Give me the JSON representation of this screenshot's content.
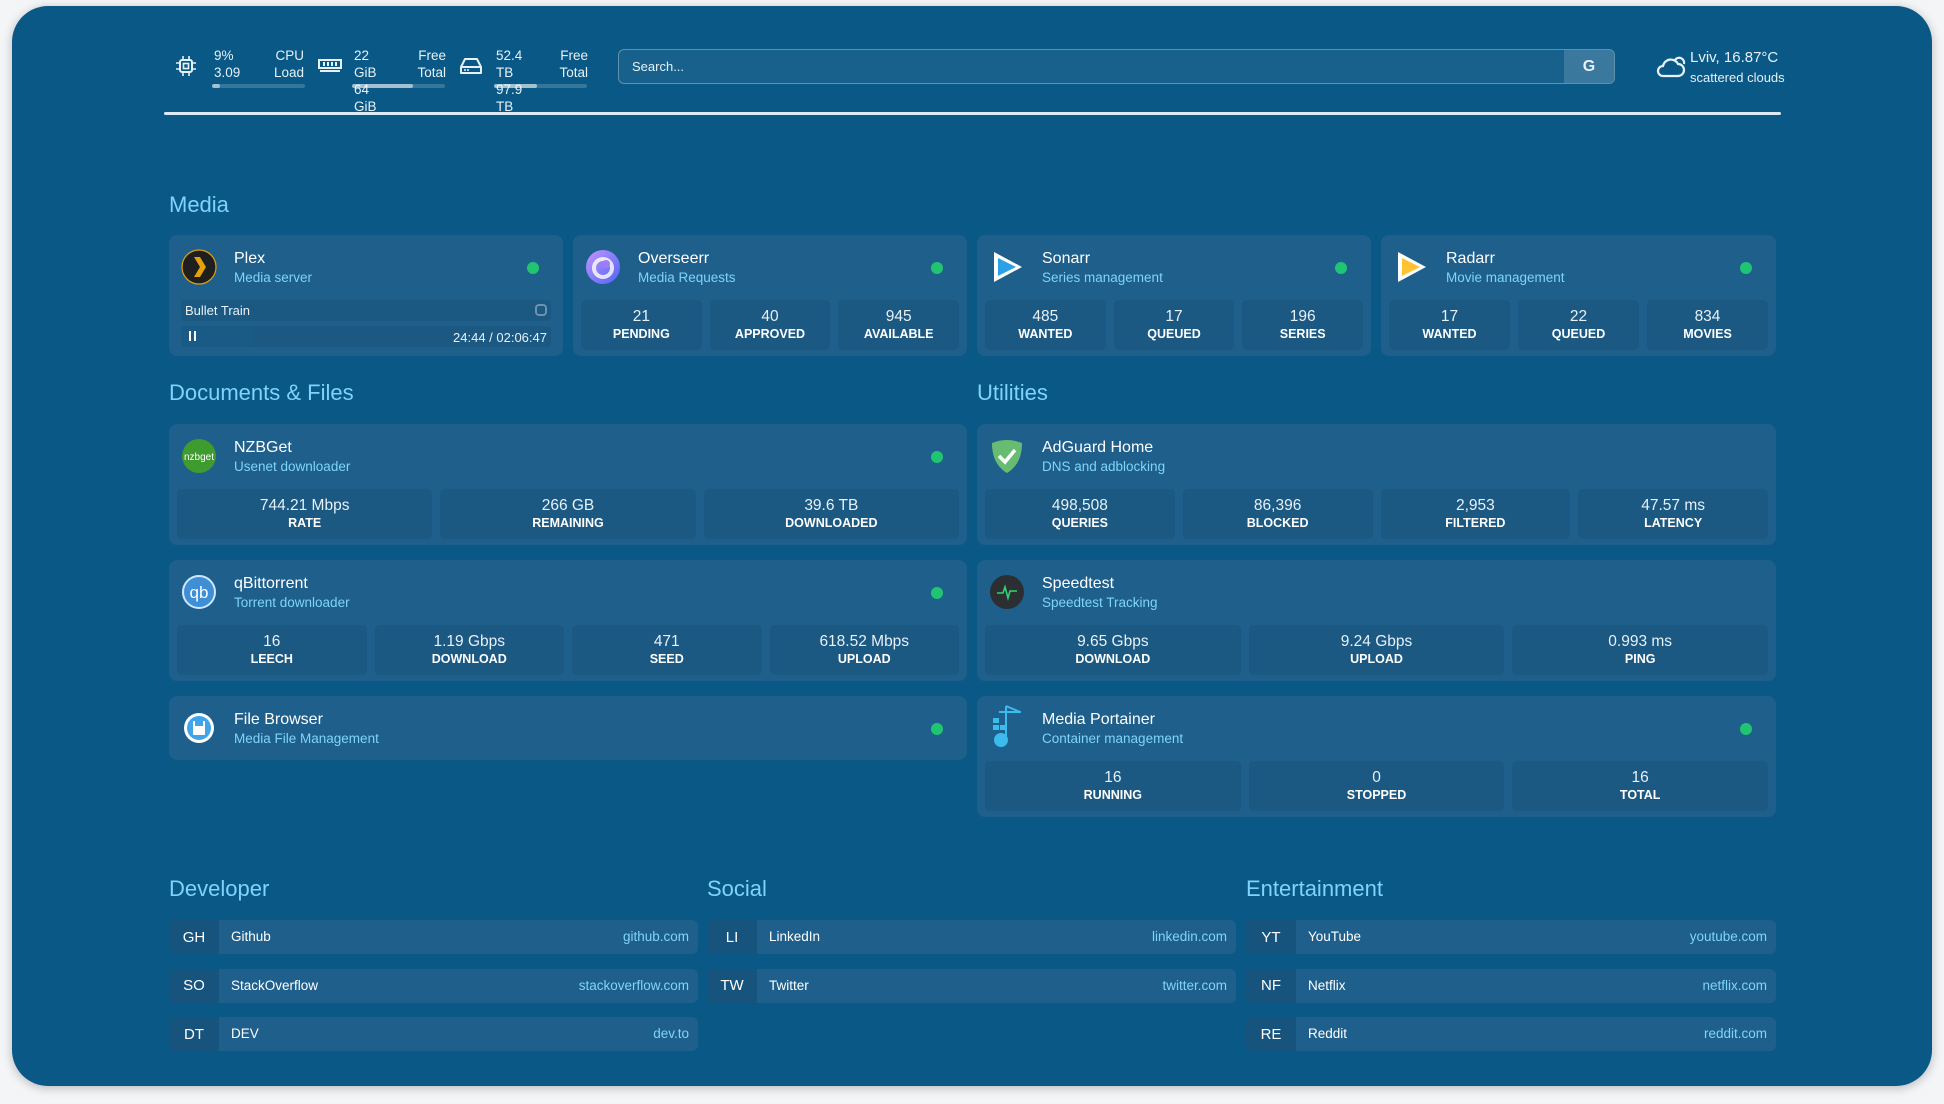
{
  "colors": {
    "background": "#0a5885",
    "card": "#1e5f8b",
    "accent": "#7fd4fb",
    "status_online": "#20c572"
  },
  "widgets": {
    "cpu": {
      "icon": "cpu-icon",
      "value1": "9%",
      "label1": "CPU",
      "value2": "3.09",
      "label2": "Load",
      "percent": 9
    },
    "memory": {
      "icon": "memory-icon",
      "value1": "22 GiB",
      "label1": "Free",
      "value2": "64 GiB",
      "label2": "Total",
      "percent": 66
    },
    "disk": {
      "icon": "disk-icon",
      "value1": "52.4 TB",
      "label1": "Free",
      "value2": "97.9 TB",
      "label2": "Total",
      "percent": 46
    },
    "search": {
      "placeholder": "Search...",
      "button": "G"
    },
    "weather": {
      "icon": "cloud-sun-icon",
      "location": "Lviv, 16.87°C",
      "condition": "scattered clouds"
    }
  },
  "groups": {
    "media": "Media",
    "documents": "Documents & Files",
    "utilities": "Utilities",
    "developer": "Developer",
    "social": "Social",
    "entertainment": "Entertainment"
  },
  "services": {
    "plex": {
      "name": "Plex",
      "description": "Media server",
      "icon": "plex-icon",
      "status": "online",
      "now_playing": {
        "title": "Bullet Train",
        "time": "24:44 / 02:06:47",
        "progress_percent": 19.5,
        "state": "playing"
      }
    },
    "overseerr": {
      "name": "Overseerr",
      "description": "Media Requests",
      "icon": "overseerr-icon",
      "status": "online",
      "stats": [
        {
          "value": "21",
          "label": "PENDING"
        },
        {
          "value": "40",
          "label": "APPROVED"
        },
        {
          "value": "945",
          "label": "AVAILABLE"
        }
      ]
    },
    "sonarr": {
      "name": "Sonarr",
      "description": "Series management",
      "icon": "sonarr-icon",
      "status": "online",
      "stats": [
        {
          "value": "485",
          "label": "WANTED"
        },
        {
          "value": "17",
          "label": "QUEUED"
        },
        {
          "value": "196",
          "label": "SERIES"
        }
      ]
    },
    "radarr": {
      "name": "Radarr",
      "description": "Movie management",
      "icon": "radarr-icon",
      "status": "online",
      "stats": [
        {
          "value": "17",
          "label": "WANTED"
        },
        {
          "value": "22",
          "label": "QUEUED"
        },
        {
          "value": "834",
          "label": "MOVIES"
        }
      ]
    },
    "nzbget": {
      "name": "NZBGet",
      "description": "Usenet downloader",
      "icon": "nzbget-icon",
      "status": "online",
      "stats": [
        {
          "value": "744.21 Mbps",
          "label": "RATE"
        },
        {
          "value": "266 GB",
          "label": "REMAINING"
        },
        {
          "value": "39.6 TB",
          "label": "DOWNLOADED"
        }
      ]
    },
    "qbittorrent": {
      "name": "qBittorrent",
      "description": "Torrent downloader",
      "icon": "qbittorrent-icon",
      "status": "online",
      "stats": [
        {
          "value": "16",
          "label": "LEECH"
        },
        {
          "value": "1.19 Gbps",
          "label": "DOWNLOAD"
        },
        {
          "value": "471",
          "label": "SEED"
        },
        {
          "value": "618.52 Mbps",
          "label": "UPLOAD"
        }
      ]
    },
    "filebrowser": {
      "name": "File Browser",
      "description": "Media File Management",
      "icon": "filebrowser-icon",
      "status": "online"
    },
    "adguard": {
      "name": "AdGuard Home",
      "description": "DNS and adblocking",
      "icon": "adguard-icon",
      "stats": [
        {
          "value": "498,508",
          "label": "QUERIES"
        },
        {
          "value": "86,396",
          "label": "BLOCKED"
        },
        {
          "value": "2,953",
          "label": "FILTERED"
        },
        {
          "value": "47.57 ms",
          "label": "LATENCY"
        }
      ]
    },
    "speedtest": {
      "name": "Speedtest",
      "description": "Speedtest Tracking",
      "icon": "speedtest-icon",
      "stats": [
        {
          "value": "9.65 Gbps",
          "label": "DOWNLOAD"
        },
        {
          "value": "9.24 Gbps",
          "label": "UPLOAD"
        },
        {
          "value": "0.993 ms",
          "label": "PING"
        }
      ]
    },
    "portainer": {
      "name": "Media Portainer",
      "description": "Container management",
      "icon": "portainer-icon",
      "status": "online",
      "stats": [
        {
          "value": "16",
          "label": "RUNNING"
        },
        {
          "value": "0",
          "label": "STOPPED"
        },
        {
          "value": "16",
          "label": "TOTAL"
        }
      ]
    }
  },
  "bookmarks": {
    "developer": [
      {
        "abbr": "GH",
        "name": "Github",
        "url": "github.com"
      },
      {
        "abbr": "SO",
        "name": "StackOverflow",
        "url": "stackoverflow.com"
      },
      {
        "abbr": "DT",
        "name": "DEV",
        "url": "dev.to"
      }
    ],
    "social": [
      {
        "abbr": "LI",
        "name": "LinkedIn",
        "url": "linkedin.com"
      },
      {
        "abbr": "TW",
        "name": "Twitter",
        "url": "twitter.com"
      }
    ],
    "entertainment": [
      {
        "abbr": "YT",
        "name": "YouTube",
        "url": "youtube.com"
      },
      {
        "abbr": "NF",
        "name": "Netflix",
        "url": "netflix.com"
      },
      {
        "abbr": "RE",
        "name": "Reddit",
        "url": "reddit.com"
      }
    ]
  }
}
